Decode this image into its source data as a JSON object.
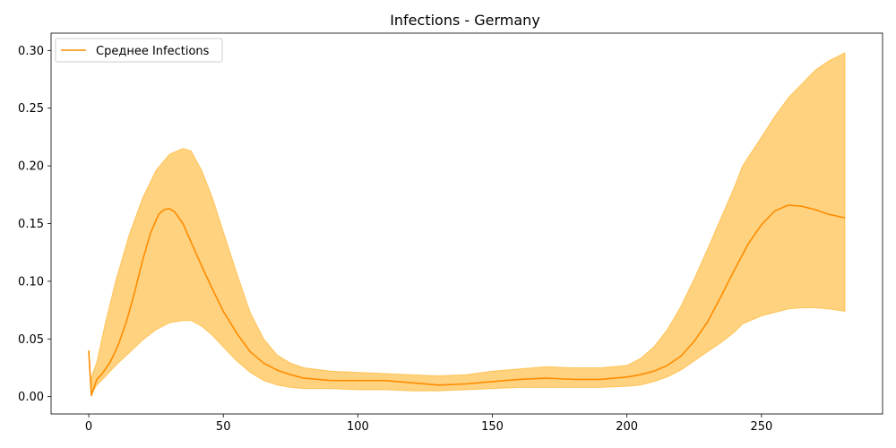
{
  "chart_data": {
    "type": "line",
    "title": "Infections - Germany",
    "xlabel": "",
    "ylabel": "",
    "xlim": [
      -14,
      295
    ],
    "ylim": [
      -0.015,
      0.315
    ],
    "xticks": [
      0,
      50,
      100,
      150,
      200,
      250
    ],
    "xtick_labels": [
      "0",
      "50",
      "100",
      "150",
      "200",
      "250"
    ],
    "yticks": [
      0.0,
      0.05,
      0.1,
      0.15,
      0.2,
      0.25,
      0.3
    ],
    "ytick_labels": [
      "0.00",
      "0.05",
      "0.10",
      "0.15",
      "0.20",
      "0.25",
      "0.30"
    ],
    "grid": false,
    "legend_position": "top-left",
    "series": [
      {
        "name": "Среднее Infections",
        "color": "#ff8c00",
        "x": [
          0,
          1,
          3,
          5,
          8,
          11,
          14,
          17,
          20,
          23,
          26,
          28,
          30,
          32,
          35,
          38,
          42,
          46,
          50,
          55,
          60,
          65,
          70,
          75,
          80,
          90,
          100,
          110,
          120,
          130,
          140,
          150,
          160,
          170,
          180,
          190,
          200,
          205,
          210,
          215,
          220,
          225,
          230,
          235,
          240,
          245,
          250,
          255,
          260,
          265,
          270,
          275,
          281
        ],
        "y": [
          0.04,
          0.001,
          0.015,
          0.02,
          0.03,
          0.045,
          0.065,
          0.09,
          0.118,
          0.142,
          0.158,
          0.162,
          0.163,
          0.16,
          0.15,
          0.134,
          0.113,
          0.093,
          0.074,
          0.055,
          0.039,
          0.029,
          0.023,
          0.019,
          0.016,
          0.014,
          0.014,
          0.014,
          0.012,
          0.01,
          0.011,
          0.013,
          0.015,
          0.016,
          0.015,
          0.015,
          0.017,
          0.019,
          0.022,
          0.027,
          0.035,
          0.048,
          0.065,
          0.087,
          0.11,
          0.132,
          0.149,
          0.161,
          0.166,
          0.165,
          0.162,
          0.158,
          0.155
        ]
      }
    ],
    "band": {
      "color": "#ffa500",
      "opacity": 0.5,
      "x": [
        1,
        3,
        6,
        10,
        15,
        20,
        25,
        30,
        35,
        38,
        42,
        46,
        50,
        55,
        60,
        65,
        70,
        75,
        80,
        90,
        100,
        110,
        120,
        130,
        140,
        150,
        160,
        170,
        180,
        190,
        200,
        205,
        210,
        215,
        220,
        225,
        230,
        235,
        240,
        243,
        250,
        255,
        260,
        265,
        270,
        275,
        281
      ],
      "upper": [
        0.017,
        0.03,
        0.062,
        0.1,
        0.14,
        0.172,
        0.196,
        0.21,
        0.215,
        0.213,
        0.196,
        0.172,
        0.143,
        0.107,
        0.073,
        0.05,
        0.036,
        0.029,
        0.025,
        0.022,
        0.021,
        0.02,
        0.019,
        0.018,
        0.019,
        0.022,
        0.024,
        0.026,
        0.025,
        0.025,
        0.027,
        0.033,
        0.043,
        0.058,
        0.078,
        0.102,
        0.128,
        0.155,
        0.182,
        0.2,
        0.225,
        0.243,
        0.259,
        0.271,
        0.283,
        0.291,
        0.298
      ],
      "lower": [
        0.002,
        0.01,
        0.017,
        0.027,
        0.038,
        0.049,
        0.058,
        0.064,
        0.066,
        0.066,
        0.061,
        0.053,
        0.043,
        0.031,
        0.021,
        0.014,
        0.01,
        0.008,
        0.007,
        0.007,
        0.006,
        0.006,
        0.005,
        0.005,
        0.006,
        0.007,
        0.008,
        0.008,
        0.008,
        0.008,
        0.009,
        0.01,
        0.013,
        0.017,
        0.023,
        0.031,
        0.039,
        0.047,
        0.056,
        0.063,
        0.07,
        0.073,
        0.076,
        0.077,
        0.077,
        0.076,
        0.074
      ]
    }
  }
}
